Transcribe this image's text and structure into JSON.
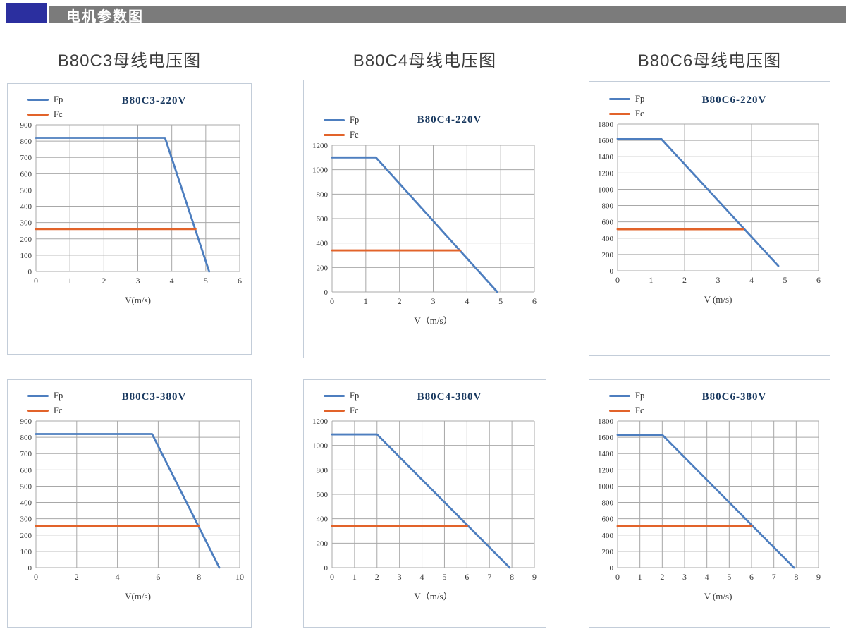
{
  "header": {
    "title": "电机参数图",
    "accent_color": "#2b2f9f",
    "bar_color": "#7b7b7b"
  },
  "columns": [
    {
      "title": "B80C3母线电压图"
    },
    {
      "title": "B80C4母线电压图"
    },
    {
      "title": "B80C6母线电压图"
    }
  ],
  "colors": {
    "fp": "#4d7ebf",
    "fc": "#e2632a",
    "grid": "#a8a8a8",
    "panel_border": "#c3cdd9"
  },
  "chart_data": [
    {
      "type": "line",
      "title": "B80C3-220V",
      "xlabel": "V(m/s)",
      "legend_position": "top-left",
      "grid": true,
      "xlim": [
        0,
        6
      ],
      "ylim": [
        0,
        900
      ],
      "x_ticks": [
        0,
        1,
        2,
        3,
        4,
        5,
        6
      ],
      "y_ticks": [
        0,
        100,
        200,
        300,
        400,
        500,
        600,
        700,
        800,
        900
      ],
      "series": [
        {
          "name": "Fp",
          "color": "#4d7ebf",
          "points": [
            [
              0,
              820
            ],
            [
              3.8,
              820
            ],
            [
              5.1,
              0
            ]
          ]
        },
        {
          "name": "Fc",
          "color": "#e2632a",
          "points": [
            [
              0,
              260
            ],
            [
              4.7,
              260
            ]
          ]
        }
      ]
    },
    {
      "type": "line",
      "title": "B80C4-220V",
      "xlabel": "V（m/s）",
      "legend_position": "top-left",
      "grid": true,
      "xlim": [
        0,
        6
      ],
      "ylim": [
        0,
        1200
      ],
      "x_ticks": [
        0,
        1,
        2,
        3,
        4,
        5,
        6
      ],
      "y_ticks": [
        0,
        200,
        400,
        600,
        800,
        1000,
        1200
      ],
      "series": [
        {
          "name": "Fp",
          "color": "#4d7ebf",
          "points": [
            [
              0,
              1100
            ],
            [
              1.3,
              1100
            ],
            [
              4.9,
              0
            ]
          ]
        },
        {
          "name": "Fc",
          "color": "#e2632a",
          "points": [
            [
              0,
              340
            ],
            [
              3.8,
              340
            ]
          ]
        }
      ]
    },
    {
      "type": "line",
      "title": "B80C6-220V",
      "xlabel": "V (m/s)",
      "legend_position": "top-left",
      "grid": true,
      "xlim": [
        0,
        6
      ],
      "ylim": [
        0,
        1800
      ],
      "x_ticks": [
        0,
        1,
        2,
        3,
        4,
        5,
        6
      ],
      "y_ticks": [
        0,
        200,
        400,
        600,
        800,
        1000,
        1200,
        1400,
        1600,
        1800
      ],
      "series": [
        {
          "name": "Fp",
          "color": "#4d7ebf",
          "points": [
            [
              0,
              1620
            ],
            [
              1.3,
              1620
            ],
            [
              4.8,
              60
            ]
          ]
        },
        {
          "name": "Fc",
          "color": "#e2632a",
          "points": [
            [
              0,
              510
            ],
            [
              3.75,
              510
            ]
          ]
        }
      ]
    },
    {
      "type": "line",
      "title": "B80C3-380V",
      "xlabel": "V(m/s)",
      "legend_position": "top-left",
      "grid": true,
      "xlim": [
        0,
        10
      ],
      "ylim": [
        0,
        900
      ],
      "x_ticks": [
        0,
        2,
        4,
        6,
        8,
        10
      ],
      "y_ticks": [
        0,
        100,
        200,
        300,
        400,
        500,
        600,
        700,
        800,
        900
      ],
      "series": [
        {
          "name": "Fp",
          "color": "#4d7ebf",
          "points": [
            [
              0,
              820
            ],
            [
              5.7,
              820
            ],
            [
              9.0,
              0
            ]
          ]
        },
        {
          "name": "Fc",
          "color": "#e2632a",
          "points": [
            [
              0,
              255
            ],
            [
              8.0,
              255
            ]
          ]
        }
      ]
    },
    {
      "type": "line",
      "title": "B80C4-380V",
      "xlabel": "V（m/s）",
      "legend_position": "top-left",
      "grid": true,
      "xlim": [
        0,
        9
      ],
      "ylim": [
        0,
        1200
      ],
      "x_ticks": [
        0,
        1,
        2,
        3,
        4,
        5,
        6,
        7,
        8,
        9
      ],
      "y_ticks": [
        0,
        200,
        400,
        600,
        800,
        1000,
        1200
      ],
      "series": [
        {
          "name": "Fp",
          "color": "#4d7ebf",
          "points": [
            [
              0,
              1090
            ],
            [
              2.0,
              1090
            ],
            [
              7.9,
              0
            ]
          ]
        },
        {
          "name": "Fc",
          "color": "#e2632a",
          "points": [
            [
              0,
              340
            ],
            [
              6.0,
              340
            ]
          ]
        }
      ]
    },
    {
      "type": "line",
      "title": "B80C6-380V",
      "xlabel": "V (m/s)",
      "legend_position": "top-left",
      "grid": true,
      "xlim": [
        0,
        9
      ],
      "ylim": [
        0,
        1800
      ],
      "x_ticks": [
        0,
        1,
        2,
        3,
        4,
        5,
        6,
        7,
        8,
        9
      ],
      "y_ticks": [
        0,
        200,
        400,
        600,
        800,
        1000,
        1200,
        1400,
        1600,
        1800
      ],
      "series": [
        {
          "name": "Fp",
          "color": "#4d7ebf",
          "points": [
            [
              0,
              1630
            ],
            [
              2.0,
              1630
            ],
            [
              7.9,
              0
            ]
          ]
        },
        {
          "name": "Fc",
          "color": "#e2632a",
          "points": [
            [
              0,
              510
            ],
            [
              6.0,
              510
            ]
          ]
        }
      ]
    }
  ]
}
